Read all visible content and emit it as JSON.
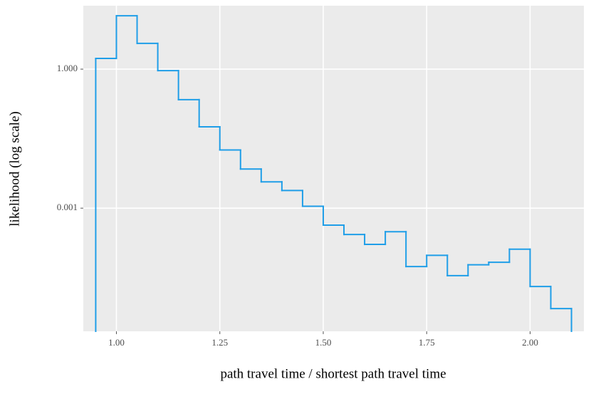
{
  "chart_data": {
    "type": "histogram-step",
    "x_label": "path travel time / shortest path travel time",
    "y_label": "likelihood (log scale)",
    "bins": [
      0.95,
      1.0,
      1.05,
      1.1,
      1.15,
      1.2,
      1.25,
      1.3,
      1.35,
      1.4,
      1.45,
      1.5,
      1.55,
      1.6,
      1.65,
      1.7,
      1.75,
      1.8,
      1.85,
      1.9,
      1.95,
      2.0,
      2.05,
      2.1
    ],
    "values": [
      1.7,
      14.2,
      3.6,
      0.93,
      0.22,
      0.057,
      0.018,
      0.007,
      0.0037,
      0.0024,
      0.0011,
      0.00043,
      0.00027,
      0.000165,
      0.00031,
      5.5e-05,
      9.6e-05,
      3.5e-05,
      6e-05,
      6.8e-05,
      0.00013,
      2.04e-05,
      6.8e-06
    ],
    "color": "#1f9ee8",
    "xlim": [
      0.92,
      2.13
    ],
    "xticks": [
      {
        "value": 1.0,
        "label": "1.00"
      },
      {
        "value": 1.25,
        "label": "1.25"
      },
      {
        "value": 1.5,
        "label": "1.50"
      },
      {
        "value": 1.75,
        "label": "1.75"
      },
      {
        "value": 2.0,
        "label": "2.00"
      }
    ],
    "ylim": [
      2.2e-06,
      23.4
    ],
    "yscale": "log",
    "yticks": [
      {
        "value": 0.001,
        "label": "0.001"
      },
      {
        "value": 1,
        "label": "1.000"
      }
    ],
    "grid": true
  }
}
